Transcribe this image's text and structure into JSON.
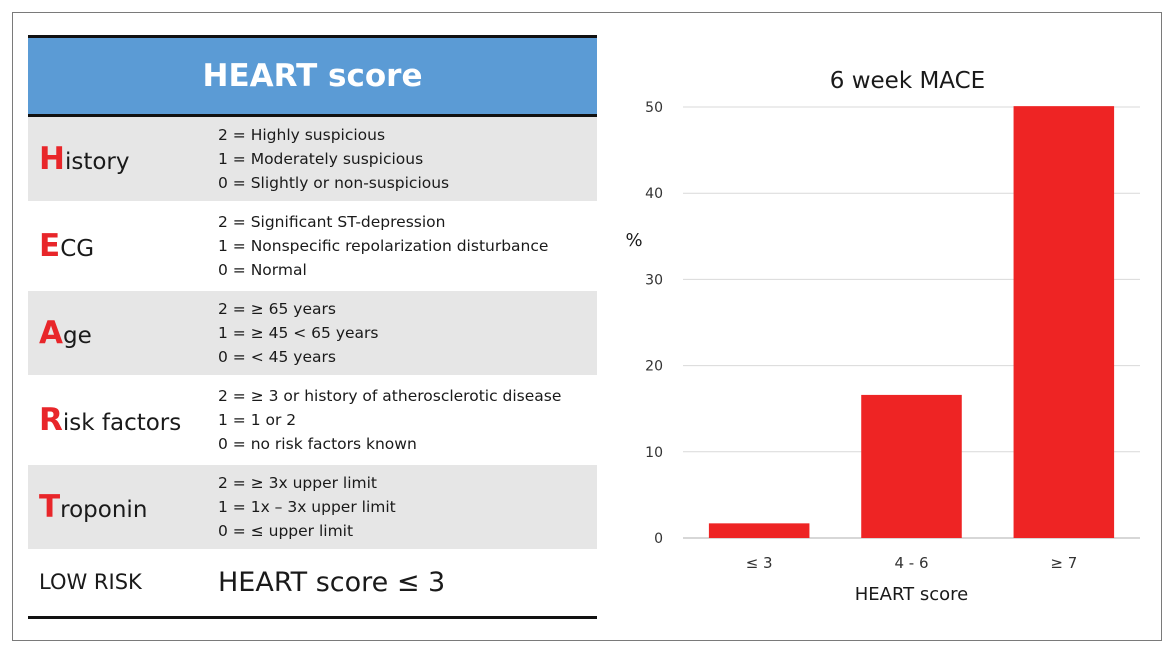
{
  "table": {
    "title": "HEART score",
    "rows": [
      {
        "letter": "H",
        "rest": "istory",
        "options": [
          "2 = Highly suspicious",
          "1 = Moderately suspicious",
          "0 = Slightly or non-suspicious"
        ]
      },
      {
        "letter": "E",
        "rest": "CG",
        "options": [
          "2 = Significant ST-depression",
          "1 = Nonspecific repolarization disturbance",
          "0 = Normal"
        ]
      },
      {
        "letter": "A",
        "rest": "ge",
        "options": [
          "2 = ≥ 65 years",
          "1 = ≥ 45 < 65 years",
          "0 = < 45 years"
        ]
      },
      {
        "letter": "R",
        "rest": "isk factors",
        "options": [
          "2 = ≥ 3 or history of atherosclerotic disease",
          "1 = 1 or 2",
          "0 = no risk factors known"
        ]
      },
      {
        "letter": "T",
        "rest": "roponin",
        "options": [
          "2 = ≥ 3x upper limit",
          "1 = 1x – 3x upper limit",
          "0 = ≤ upper limit"
        ]
      }
    ],
    "low_risk_label": "LOW RISK",
    "low_risk_value": "HEART score ≤ 3"
  },
  "colors": {
    "header_bg": "#5b9bd5",
    "accent_red": "#e8262a",
    "row_shade": "#e6e6e6"
  },
  "chart_data": {
    "type": "bar",
    "title": "6 week MACE",
    "xlabel": "HEART score",
    "ylabel": "%",
    "categories": [
      "≤ 3",
      "4 - 6",
      "≥ 7"
    ],
    "values": [
      1.7,
      16.6,
      50.1
    ],
    "ylim": [
      0,
      50
    ],
    "yticks": [
      0,
      10,
      20,
      30,
      40,
      50
    ],
    "grid": true,
    "legend": "none",
    "bar_color": "#ee2424"
  }
}
